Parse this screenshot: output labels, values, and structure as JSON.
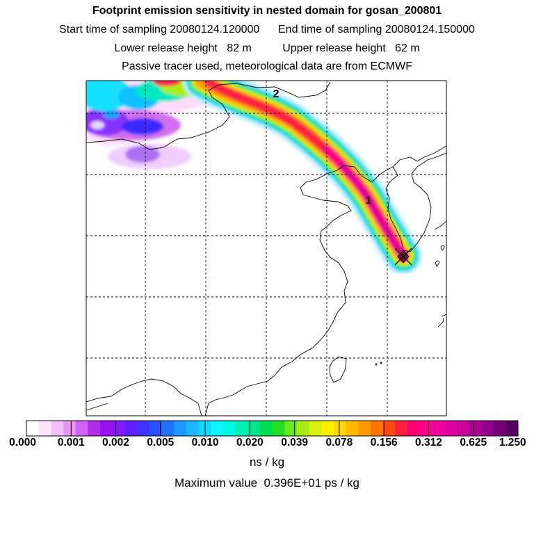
{
  "header": {
    "title": "Footprint emission sensitivity in nested domain for gosan_200801",
    "line1": "Start time of sampling 20080124.120000      End time of sampling 20080124.150000",
    "line2": "Lower release height   82 m          Upper release height   62 m",
    "line3": "Passive tracer used, meteorological data are from ECMWF"
  },
  "map": {
    "markers": [
      "1",
      "2"
    ],
    "receptor_symbol": "✕"
  },
  "colorbar": {
    "tick_labels": [
      "0.000",
      "0.001",
      "0.002",
      "0.005",
      "0.010",
      "0.020",
      "0.039",
      "0.078",
      "0.156",
      "0.312",
      "0.625",
      "1.250"
    ],
    "colors": [
      "#ffffff",
      "#ffe6ff",
      "#f5c0f8",
      "#ec96f3",
      "#cf62ee",
      "#b12ee8",
      "#9a0ff0",
      "#8418ff",
      "#5f20ff",
      "#4133ff",
      "#2850ff",
      "#1f73ff",
      "#1e98ff",
      "#1ab8ff",
      "#12d8ff",
      "#0cf4ff",
      "#00f8e0",
      "#00f0b4",
      "#00e48a",
      "#00dc54",
      "#20e020",
      "#66e81a",
      "#a6ee14",
      "#d8f010",
      "#fcf000",
      "#ffd800",
      "#ffba00",
      "#ff9a00",
      "#ff7400",
      "#ff4a10",
      "#ff2040",
      "#ff0070",
      "#ff008c",
      "#f0009c",
      "#dc00a0",
      "#c8009c",
      "#ae0096",
      "#92008a",
      "#74007a",
      "#560064"
    ],
    "unit": "ns / kg"
  },
  "footer": {
    "max_value": "Maximum value  0.396E+01 ps / kg"
  }
}
